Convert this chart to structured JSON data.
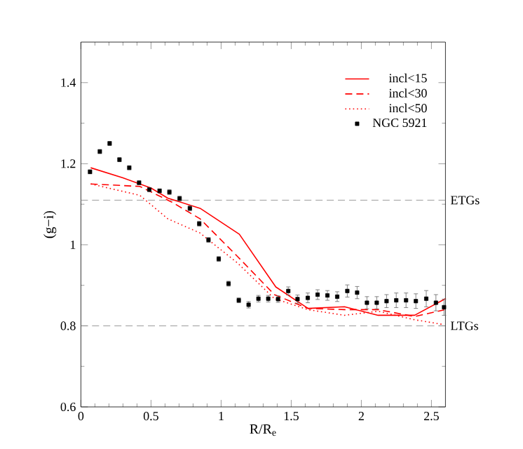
{
  "chart_data": {
    "type": "line",
    "xlabel": "R/R$_{e}$",
    "ylabel": "(g−i)",
    "xlim": [
      0,
      2.6
    ],
    "xticks": [
      0,
      0.5,
      1,
      1.5,
      2,
      2.5
    ],
    "ylim": [
      0.6,
      1.5
    ],
    "yticks": [
      0.6,
      0.8,
      1,
      1.2,
      1.4
    ],
    "legend": "top right",
    "series": [
      {
        "name": "incl<15",
        "color": "#ff0000",
        "line_style": "solid",
        "marker": "none",
        "x": [
          0.07,
          0.3,
          0.5,
          0.62,
          0.85,
          1.13,
          1.39,
          1.62,
          1.88,
          2.12,
          2.38,
          2.6
        ],
        "values": [
          1.19,
          1.165,
          1.14,
          1.115,
          1.09,
          1.026,
          0.896,
          0.843,
          0.847,
          0.826,
          0.826,
          0.867
        ]
      },
      {
        "name": "incl<30",
        "color": "#ff0000",
        "line_style": "dashed",
        "marker": "none",
        "x": [
          0.07,
          0.42,
          0.65,
          0.85,
          1.12,
          1.38,
          1.62,
          1.88,
          2.12,
          2.38,
          2.6
        ],
        "values": [
          1.15,
          1.144,
          1.105,
          1.064,
          0.97,
          0.877,
          0.843,
          0.84,
          0.84,
          0.823,
          0.84
        ]
      },
      {
        "name": "incl<50",
        "color": "#ff0000",
        "line_style": "dotted",
        "marker": "none",
        "x": [
          0.07,
          0.42,
          0.62,
          0.85,
          1.12,
          1.38,
          1.62,
          1.88,
          2.12,
          2.38,
          2.59
        ],
        "values": [
          1.15,
          1.122,
          1.064,
          1.029,
          0.954,
          0.867,
          0.84,
          0.826,
          0.836,
          0.815,
          0.803
        ]
      },
      {
        "name": "NGC 5921",
        "type": "scatter",
        "color": "#000000",
        "marker": "square",
        "x": [
          0.065,
          0.135,
          0.205,
          0.275,
          0.345,
          0.415,
          0.488,
          0.561,
          0.631,
          0.704,
          0.777,
          0.844,
          0.91,
          0.983,
          1.053,
          1.126,
          1.196,
          1.266,
          1.336,
          1.406,
          1.479,
          1.545,
          1.618,
          1.688,
          1.758,
          1.828,
          1.9,
          1.97,
          2.04,
          2.11,
          2.18,
          2.249,
          2.319,
          2.389,
          2.463,
          2.532,
          2.59
        ],
        "values": [
          1.18,
          1.23,
          1.25,
          1.21,
          1.19,
          1.153,
          1.136,
          1.133,
          1.13,
          1.114,
          1.09,
          1.052,
          1.012,
          0.965,
          0.904,
          0.863,
          0.852,
          0.867,
          0.867,
          0.866,
          0.886,
          0.866,
          0.869,
          0.877,
          0.875,
          0.872,
          0.886,
          0.882,
          0.857,
          0.857,
          0.861,
          0.863,
          0.863,
          0.861,
          0.867,
          0.857,
          0.846
        ],
        "errors": [
          0.005,
          0.005,
          0.005,
          0.005,
          0.005,
          0.005,
          0.005,
          0.005,
          0.006,
          0.006,
          0.006,
          0.006,
          0.006,
          0.006,
          0.006,
          0.006,
          0.008,
          0.008,
          0.008,
          0.008,
          0.01,
          0.01,
          0.012,
          0.012,
          0.012,
          0.012,
          0.015,
          0.015,
          0.015,
          0.015,
          0.016,
          0.018,
          0.018,
          0.018,
          0.02,
          0.02,
          0.02
        ]
      }
    ],
    "ref_lines": [
      {
        "axis": "y",
        "value": 1.11,
        "label": "ETGs",
        "color": "#808080",
        "line_style": "dashed"
      },
      {
        "axis": "y",
        "value": 0.8,
        "label": "LTGs",
        "color": "#808080",
        "line_style": "dashed"
      }
    ]
  }
}
